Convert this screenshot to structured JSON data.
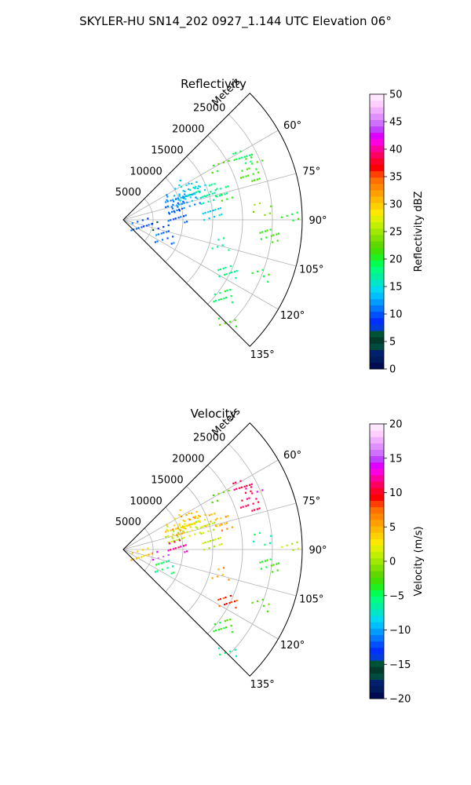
{
  "figure": {
    "title": "SKYLER-HU  SN14_202  0927_1.144 UTC Elevation 06°"
  },
  "chart_data": [
    {
      "type": "polar-sector",
      "title": "Reflectivity",
      "radial_label": "Meters",
      "r_range": [
        0,
        30000
      ],
      "r_ticks": [
        "5000",
        "10000",
        "15000",
        "20000",
        "25000"
      ],
      "r_tick_values": [
        5000,
        10000,
        15000,
        20000,
        25000
      ],
      "theta_range_deg": [
        45,
        135
      ],
      "theta_ticks": [
        "60°",
        "75°",
        "90°",
        "105°",
        "120°",
        "135°"
      ],
      "theta_tick_values": [
        60,
        75,
        90,
        105,
        120,
        135
      ],
      "grid": true,
      "colorbar": {
        "label": "Reflectivity dBZ",
        "range": [
          0,
          50
        ],
        "ticks": [
          "0",
          "5",
          "10",
          "15",
          "20",
          "25",
          "30",
          "35",
          "40",
          "45",
          "50"
        ],
        "tick_values": [
          0,
          5,
          10,
          15,
          20,
          25,
          30,
          35,
          40,
          45,
          50
        ],
        "colors": [
          "#000b52",
          "#001a5e",
          "#00206e",
          "#004a3f",
          "#003a2a",
          "#005436",
          "#003edb",
          "#0030ff",
          "#0050ff",
          "#0078ff",
          "#009cff",
          "#00bfff",
          "#00d9f0",
          "#00e6c6",
          "#00f0a0",
          "#00ff80",
          "#00ff50",
          "#20f020",
          "#40e000",
          "#60d800",
          "#80e000",
          "#a0e800",
          "#c0f000",
          "#e0f000",
          "#ffe800",
          "#ffd000",
          "#ffb800",
          "#ffa000",
          "#ff8800",
          "#ff7000",
          "#ff4000",
          "#ff0000",
          "#ff0028",
          "#ff0060",
          "#ff00a0",
          "#ff00e0",
          "#e000ff",
          "#c040ff",
          "#d070ff",
          "#e090ff",
          "#f0b0ff",
          "#ffd0ff",
          "#ffe8ff"
        ]
      },
      "cells": [
        {
          "r": 12500,
          "t": 63,
          "v": 14
        },
        {
          "r": 12000,
          "t": 66,
          "v": 15
        },
        {
          "r": 11000,
          "t": 67,
          "v": 14
        },
        {
          "r": 10500,
          "t": 70,
          "v": 13
        },
        {
          "r": 9500,
          "t": 71,
          "v": 12
        },
        {
          "r": 8700,
          "t": 74,
          "v": 11
        },
        {
          "r": 13500,
          "t": 70,
          "v": 16
        },
        {
          "r": 14000,
          "t": 74,
          "v": 17
        },
        {
          "r": 11500,
          "t": 73,
          "v": 12
        },
        {
          "r": 9000,
          "t": 68,
          "v": 12
        },
        {
          "r": 13000,
          "t": 66,
          "v": 15
        },
        {
          "r": 16500,
          "t": 72,
          "v": 18
        },
        {
          "r": 17000,
          "t": 75,
          "v": 20
        },
        {
          "r": 22500,
          "t": 62,
          "v": 19
        },
        {
          "r": 23500,
          "t": 66,
          "v": 21
        },
        {
          "r": 22500,
          "t": 70,
          "v": 22
        },
        {
          "r": 27500,
          "t": 88,
          "v": 20
        },
        {
          "r": 24500,
          "t": 96,
          "v": 21
        },
        {
          "r": 23000,
          "t": 85,
          "v": 24
        },
        {
          "r": 9000,
          "t": 86,
          "v": 10
        },
        {
          "r": 6000,
          "t": 100,
          "v": 8
        },
        {
          "r": 7500,
          "t": 112,
          "v": 11
        },
        {
          "r": 16500,
          "t": 104,
          "v": 18
        },
        {
          "r": 19500,
          "t": 116,
          "v": 18
        },
        {
          "r": 24500,
          "t": 112,
          "v": 20
        },
        {
          "r": 21000,
          "t": 127,
          "v": 19
        },
        {
          "r": 24000,
          "t": 134,
          "v": 22
        },
        {
          "r": 15000,
          "t": 86,
          "v": 14
        },
        {
          "r": 18500,
          "t": 61,
          "v": 22
        },
        {
          "r": 3000,
          "t": 101,
          "v": 10
        }
      ]
    },
    {
      "type": "polar-sector",
      "title": "Velocity",
      "radial_label": "Meters",
      "r_range": [
        0,
        30000
      ],
      "r_ticks": [
        "5000",
        "10000",
        "15000",
        "20000",
        "25000"
      ],
      "r_tick_values": [
        5000,
        10000,
        15000,
        20000,
        25000
      ],
      "theta_range_deg": [
        45,
        135
      ],
      "theta_ticks": [
        "60°",
        "75°",
        "90°",
        "105°",
        "120°",
        "135°"
      ],
      "theta_tick_values": [
        60,
        75,
        90,
        105,
        120,
        135
      ],
      "grid": true,
      "colorbar": {
        "label": "Velocity (m/s)",
        "range": [
          -20,
          20
        ],
        "ticks": [
          "−20",
          "−15",
          "−10",
          "−5",
          "0",
          "5",
          "10",
          "15",
          "20"
        ],
        "tick_values": [
          -20,
          -15,
          -10,
          -5,
          0,
          5,
          10,
          15,
          20
        ],
        "colors": [
          "#000b52",
          "#001a5e",
          "#00206e",
          "#004a3f",
          "#003a2a",
          "#005436",
          "#003edb",
          "#0030ff",
          "#0050ff",
          "#0078ff",
          "#009cff",
          "#00bfff",
          "#00d9f0",
          "#00e6c6",
          "#00f0a0",
          "#00ff80",
          "#00ff50",
          "#20f020",
          "#40e000",
          "#60d800",
          "#80e000",
          "#a0e800",
          "#c0f000",
          "#e0f000",
          "#ffe800",
          "#ffd000",
          "#ffb800",
          "#ffa000",
          "#ff8800",
          "#ff7000",
          "#ff4000",
          "#ff0000",
          "#ff0028",
          "#ff0060",
          "#ff00a0",
          "#ff00e0",
          "#e000ff",
          "#c040ff",
          "#d070ff",
          "#e090ff",
          "#f0b0ff",
          "#ffd0ff",
          "#ffe8ff"
        ]
      },
      "cells": [
        {
          "r": 12500,
          "t": 63,
          "v": 5
        },
        {
          "r": 12000,
          "t": 66,
          "v": 4
        },
        {
          "r": 11000,
          "t": 67,
          "v": 4
        },
        {
          "r": 10500,
          "t": 70,
          "v": 2
        },
        {
          "r": 9500,
          "t": 71,
          "v": 1
        },
        {
          "r": 8700,
          "t": 74,
          "v": 1
        },
        {
          "r": 13500,
          "t": 70,
          "v": 3
        },
        {
          "r": 14000,
          "t": 74,
          "v": 1
        },
        {
          "r": 11500,
          "t": 73,
          "v": 2
        },
        {
          "r": 9000,
          "t": 68,
          "v": 5
        },
        {
          "r": 13000,
          "t": 66,
          "v": 5
        },
        {
          "r": 16500,
          "t": 72,
          "v": 5
        },
        {
          "r": 17000,
          "t": 75,
          "v": 6
        },
        {
          "r": 22500,
          "t": 62,
          "v": 11
        },
        {
          "r": 23500,
          "t": 66,
          "v": 12
        },
        {
          "r": 22500,
          "t": 70,
          "v": 11
        },
        {
          "r": 27500,
          "t": 88,
          "v": 1
        },
        {
          "r": 24500,
          "t": 96,
          "v": -3
        },
        {
          "r": 23000,
          "t": 85,
          "v": -6
        },
        {
          "r": 9000,
          "t": 86,
          "v": 12
        },
        {
          "r": 6000,
          "t": 100,
          "v": 15
        },
        {
          "r": 7500,
          "t": 112,
          "v": -5
        },
        {
          "r": 16500,
          "t": 104,
          "v": 6
        },
        {
          "r": 19500,
          "t": 116,
          "v": 9
        },
        {
          "r": 24500,
          "t": 112,
          "v": -2
        },
        {
          "r": 21000,
          "t": 127,
          "v": -3
        },
        {
          "r": 24000,
          "t": 134,
          "v": -6
        },
        {
          "r": 15000,
          "t": 86,
          "v": 1
        },
        {
          "r": 18500,
          "t": 61,
          "v": -2
        },
        {
          "r": 3000,
          "t": 101,
          "v": 4
        }
      ]
    }
  ]
}
